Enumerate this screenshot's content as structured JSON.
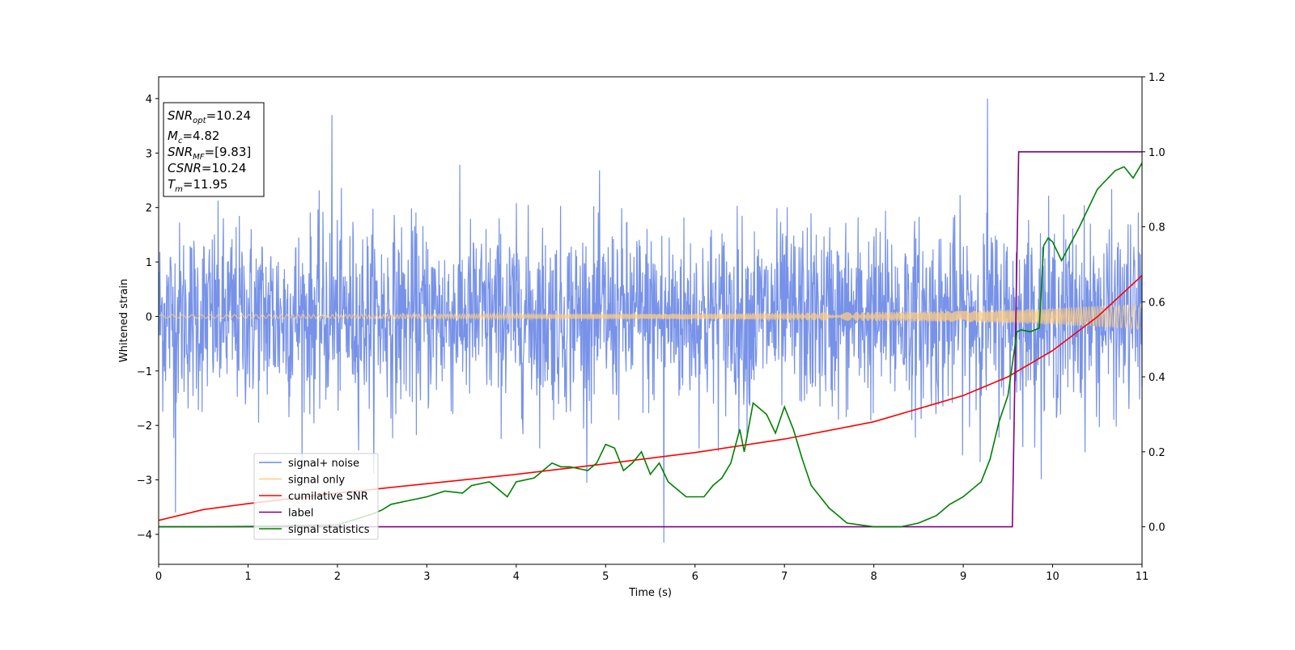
{
  "chart_data": {
    "type": "line",
    "xlabel": "Time (s)",
    "ylabel": "Whitened strain",
    "xlim": [
      0,
      11
    ],
    "ylim": [
      -4.55,
      4.4
    ],
    "y2lim": [
      -0.1,
      1.2
    ],
    "x_ticks": [
      "0",
      "1",
      "2",
      "3",
      "4",
      "5",
      "6",
      "7",
      "8",
      "9",
      "10",
      "11"
    ],
    "y_ticks": [
      "−4",
      "−3",
      "−2",
      "−1",
      "0",
      "1",
      "2",
      "3",
      "4"
    ],
    "y2_ticks": [
      "0.0",
      "0.2",
      "0.4",
      "0.6",
      "0.8",
      "1.0",
      "1.2"
    ],
    "annotation": {
      "snr_opt": {
        "sym": "SNR",
        "sub": "opt",
        "value": "=10.24"
      },
      "mc": {
        "sym": "M",
        "sub": "c",
        "value": "=4.82"
      },
      "snr_mf": {
        "sym": "SNR",
        "sub": "MF",
        "value": "=[9.83]"
      },
      "csnr": {
        "sym": "CSNR",
        "value": "=10.24"
      },
      "tm": {
        "sym": "T",
        "sub": "m",
        "value": "=11.95"
      }
    },
    "legend": {
      "placement": "lower-left",
      "entries": [
        {
          "label": "signal+ noise",
          "color": "#6b89e6"
        },
        {
          "label": "signal only",
          "color": "#ffcc80"
        },
        {
          "label": "cumilative SNR",
          "color": "#ff0000"
        },
        {
          "label": "label",
          "color": "#800080"
        },
        {
          "label": "signal statistics",
          "color": "#008000"
        }
      ]
    },
    "series": [
      {
        "name": "signal+ noise",
        "axis": "left",
        "color": "#6b89e6",
        "description": "whitened strain noise, approx. Gaussian, amplitude ~ +/-2 with spikes up to 4.0 and down to -4.15",
        "extremes": [
          {
            "x": 1.94,
            "y": 3.7
          },
          {
            "x": 0.19,
            "y": -3.6
          },
          {
            "x": 9.27,
            "y": 4.0
          },
          {
            "x": 5.65,
            "y": -4.15
          }
        ]
      },
      {
        "name": "signal only",
        "axis": "left",
        "color": "#ffcc80",
        "description": "chirp, amplitude growing from ~0.03 at t=0 to ~0.23 at t=11",
        "amplitude": {
          "x": [
            0,
            6,
            9,
            10,
            11
          ],
          "y": [
            0.03,
            0.05,
            0.1,
            0.15,
            0.23
          ]
        }
      },
      {
        "name": "cumilative SNR",
        "axis": "right",
        "color": "#ff0000",
        "x": [
          0,
          0.5,
          1,
          2,
          3,
          4,
          5,
          6,
          7,
          8,
          9,
          9.5,
          10,
          10.5,
          11
        ],
        "y": [
          0.017,
          0.046,
          0.062,
          0.09,
          0.115,
          0.14,
          0.168,
          0.198,
          0.234,
          0.28,
          0.35,
          0.4,
          0.47,
          0.56,
          0.67
        ]
      },
      {
        "name": "label",
        "axis": "right",
        "color": "#800080",
        "x": [
          0,
          9.55,
          9.62,
          11
        ],
        "y": [
          0,
          0,
          1,
          1
        ]
      },
      {
        "name": "signal statistics",
        "axis": "right",
        "color": "#008000",
        "x": [
          0,
          0.5,
          1,
          1.5,
          2,
          2.2,
          2.4,
          2.5,
          2.6,
          2.8,
          3,
          3.2,
          3.4,
          3.5,
          3.7,
          3.9,
          4.0,
          4.2,
          4.4,
          4.5,
          4.6,
          4.8,
          4.9,
          5.0,
          5.1,
          5.2,
          5.3,
          5.4,
          5.5,
          5.6,
          5.7,
          5.8,
          5.9,
          6.0,
          6.1,
          6.2,
          6.3,
          6.4,
          6.5,
          6.55,
          6.65,
          6.8,
          6.9,
          7.0,
          7.1,
          7.2,
          7.3,
          7.4,
          7.5,
          7.7,
          8.0,
          8.3,
          8.5,
          8.7,
          8.85,
          9.0,
          9.1,
          9.2,
          9.3,
          9.4,
          9.5,
          9.6,
          9.65,
          9.75,
          9.85,
          9.9,
          9.95,
          10.0,
          10.1,
          10.3,
          10.5,
          10.7,
          10.8,
          10.9,
          11.0
        ],
        "y": [
          0,
          0,
          0.001,
          0.003,
          0.005,
          0.02,
          0.035,
          0.045,
          0.06,
          0.07,
          0.08,
          0.095,
          0.09,
          0.11,
          0.12,
          0.08,
          0.12,
          0.13,
          0.17,
          0.16,
          0.16,
          0.15,
          0.17,
          0.22,
          0.21,
          0.15,
          0.17,
          0.2,
          0.14,
          0.17,
          0.12,
          0.1,
          0.08,
          0.08,
          0.08,
          0.11,
          0.13,
          0.17,
          0.26,
          0.2,
          0.33,
          0.3,
          0.25,
          0.32,
          0.26,
          0.18,
          0.11,
          0.08,
          0.05,
          0.01,
          0,
          0,
          0.01,
          0.03,
          0.06,
          0.08,
          0.1,
          0.12,
          0.18,
          0.28,
          0.35,
          0.52,
          0.525,
          0.52,
          0.53,
          0.75,
          0.77,
          0.76,
          0.71,
          0.8,
          0.9,
          0.95,
          0.96,
          0.93,
          0.97
        ]
      }
    ]
  }
}
